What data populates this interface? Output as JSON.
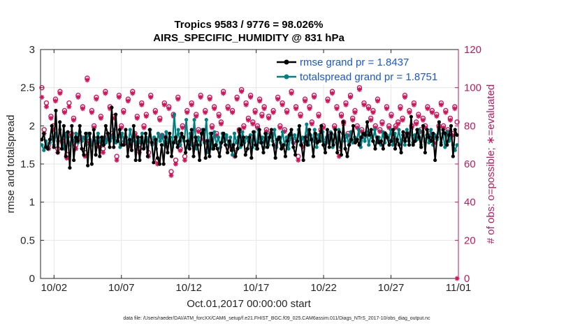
{
  "chart_data": {
    "type": "line",
    "title_line1": "Tropics 9583 / 9776 = 98.026%",
    "title_line2": "AIRS_SPECIFIC_HUMIDITY @ 831 hPa",
    "xlabel": "Oct.01,2017 00:00:00 start",
    "ylabel": "rmse and totalspread",
    "ylabel_right": "# of obs: o=possible; ∗=evaluated",
    "xlim": [
      0,
      31
    ],
    "ylim": [
      0,
      3
    ],
    "ylim_right": [
      0,
      120
    ],
    "x_ticks": [
      1,
      6,
      11,
      16,
      21,
      26,
      31
    ],
    "x_tick_labels": [
      "10/02",
      "10/07",
      "10/12",
      "10/17",
      "10/22",
      "10/27",
      "11/01"
    ],
    "y_ticks": [
      0,
      0.5,
      1,
      1.5,
      2,
      2.5,
      3
    ],
    "y_tick_labels": [
      "0",
      "0.5",
      "1",
      "1.5",
      "2",
      "2.5",
      "3"
    ],
    "y_right_ticks": [
      0,
      20,
      40,
      60,
      80,
      100,
      120
    ],
    "y_right_tick_labels": [
      "0",
      "20",
      "40",
      "60",
      "80",
      "100",
      "120"
    ],
    "legend": [
      {
        "name": "rmse grand pr = 1.8437",
        "color": "#000000"
      },
      {
        "name": "totalspread grand pr = 1.8751",
        "color": "#008080"
      }
    ],
    "series": [
      {
        "name": "rmse",
        "color": "#000000",
        "values": [
          1.82,
          1.9,
          1.72,
          1.7,
          1.82,
          2.0,
          1.72,
          2.2,
          1.65,
          2.05,
          1.7,
          2.0,
          1.6,
          1.92,
          1.45,
          2.0,
          1.55,
          1.85,
          1.8,
          2.0,
          1.7,
          1.62,
          1.9,
          1.48,
          1.9,
          1.5,
          1.95,
          1.62,
          1.85,
          1.6,
          1.85,
          1.75,
          2.0,
          1.9,
          1.72,
          2.24,
          1.72,
          2.15,
          1.8,
          1.95,
          1.75,
          1.75,
          1.95,
          1.6,
          1.82,
          1.68,
          2.0,
          1.55,
          1.85,
          1.55,
          1.85,
          1.7,
          1.9,
          1.6,
          1.95,
          1.78,
          1.52,
          1.82,
          1.58,
          1.5,
          1.75,
          1.5,
          1.85,
          1.65,
          1.9,
          1.6,
          1.78,
          1.85,
          1.72,
          1.8,
          1.9,
          1.85,
          1.65,
          1.8,
          1.7,
          1.95,
          1.6,
          1.85,
          1.75,
          1.55,
          1.9,
          1.95,
          1.58,
          1.8,
          1.6,
          1.9,
          1.7,
          1.75,
          1.7,
          1.6,
          1.78,
          1.9,
          1.75,
          1.65,
          1.8,
          1.68,
          1.75,
          1.6,
          1.7,
          1.95,
          1.75,
          1.85,
          1.62,
          1.7,
          1.85,
          1.58,
          1.92,
          1.75,
          1.7,
          1.95,
          1.78,
          1.65,
          1.9,
          1.72,
          1.85,
          1.95,
          1.75,
          1.58,
          1.82,
          1.85,
          1.7,
          1.75,
          1.6,
          1.8,
          1.88,
          1.95,
          1.72,
          1.62,
          1.8,
          2.0,
          1.75,
          1.55,
          1.85,
          1.75,
          1.95,
          1.82,
          1.6,
          1.9,
          1.78,
          1.8,
          2.0,
          1.75,
          1.65,
          1.95,
          1.72,
          1.9,
          1.75,
          1.95,
          1.65,
          1.92,
          1.62,
          2.05,
          1.7,
          1.6,
          1.75,
          1.82,
          2.0,
          1.78,
          1.82,
          1.75,
          1.85,
          1.9,
          1.88,
          2.05,
          1.88,
          1.95,
          1.8,
          1.7,
          1.85,
          1.78,
          1.8,
          1.7,
          1.9,
          1.85,
          1.75,
          1.8,
          1.95,
          1.7,
          1.82,
          1.75,
          1.65,
          1.92,
          1.8,
          1.9,
          1.75,
          2.12,
          1.75,
          1.8,
          1.95,
          1.85,
          1.72,
          2.0,
          1.65,
          1.95,
          1.85,
          1.8,
          1.9,
          1.55,
          1.85,
          2.05,
          1.75,
          1.95,
          1.9,
          1.75,
          1.88,
          2.0,
          1.6,
          1.95,
          1.88
        ]
      },
      {
        "name": "totalspread",
        "color": "#008080",
        "values": [
          1.75,
          1.68,
          1.8,
          1.72,
          1.78,
          1.85,
          1.75,
          1.9,
          1.8,
          1.95,
          1.82,
          1.7,
          1.9,
          1.85,
          1.75,
          1.85,
          1.8,
          1.9,
          1.78,
          1.92,
          1.8,
          1.85,
          1.75,
          1.9,
          1.82,
          1.75,
          1.85,
          1.78,
          1.9,
          1.8,
          1.75,
          1.85,
          1.78,
          1.9,
          1.8,
          1.85,
          1.95,
          1.78,
          1.85,
          1.72,
          1.9,
          1.8,
          1.85,
          1.75,
          1.95,
          1.8,
          1.9,
          1.75,
          1.85,
          1.78,
          1.9,
          1.72,
          1.85,
          1.8,
          1.95,
          1.75,
          1.85,
          1.7,
          1.9,
          1.8,
          1.88,
          1.75,
          1.92,
          1.78,
          1.85,
          1.72,
          2.15,
          1.78,
          1.95,
          1.75,
          1.85,
          1.8,
          2.08,
          1.72,
          1.9,
          1.75,
          2.08,
          1.7,
          1.85,
          1.75,
          1.95,
          1.78,
          2.08,
          1.65,
          1.9,
          1.7,
          1.92,
          1.75,
          1.85,
          1.72,
          1.9,
          1.8,
          1.88,
          1.75,
          1.85,
          1.62,
          1.9,
          1.78,
          1.85,
          1.72,
          1.92,
          1.78,
          1.85,
          1.8,
          1.88,
          1.72,
          1.92,
          1.7,
          1.95,
          1.78,
          1.85,
          1.72,
          1.9,
          1.75,
          1.88,
          1.8,
          1.95,
          1.72,
          1.85,
          1.78,
          1.92,
          1.75,
          1.85,
          1.7,
          1.9,
          1.78,
          1.88,
          1.8,
          1.95,
          1.75,
          1.85,
          1.78,
          2.02,
          1.75,
          1.88,
          1.8,
          1.95,
          1.72,
          1.88,
          1.8,
          1.92,
          1.75,
          1.85,
          1.78,
          1.92,
          1.72,
          1.88,
          1.78,
          1.95,
          1.72,
          1.9,
          1.8,
          1.88,
          1.75,
          1.92,
          1.78,
          1.85,
          1.8,
          1.95,
          1.72,
          1.88,
          1.8,
          1.92,
          1.75,
          1.88,
          1.8,
          1.95,
          1.78,
          1.85,
          1.75,
          1.92,
          1.78,
          1.88,
          1.82,
          1.95,
          1.75,
          1.9,
          1.8,
          1.95,
          1.78,
          1.88,
          1.75,
          1.95,
          1.8,
          1.92,
          1.78,
          1.88,
          1.82,
          1.95,
          1.75,
          1.92,
          1.8,
          1.88,
          1.78,
          1.95,
          1.75,
          1.88,
          1.82,
          1.95,
          1.78,
          1.9,
          1.72,
          1.92,
          1.8,
          1.85,
          1.75,
          1.68,
          1.75
        ]
      },
      {
        "name": "obs possible (o)",
        "color": "#d0145a",
        "marker": "circle",
        "axis": "right",
        "values": [
          100,
          78,
          92,
          70,
          85,
          80,
          94,
          68,
          98,
          72,
          88,
          65,
          92,
          76,
          84,
          70,
          96,
          74,
          90,
          66,
          105,
          72,
          88,
          80,
          95,
          70,
          85,
          68,
          98,
          74,
          90,
          76,
          85,
          64,
          96,
          80,
          88,
          72,
          94,
          70,
          98,
          76,
          85,
          68,
          92,
          80,
          86,
          66,
          96,
          72,
          88,
          62,
          84,
          75,
          92,
          70,
          90,
          56,
          86,
          62,
          95,
          68,
          80,
          64,
          88,
          72,
          92,
          70,
          86,
          78,
          96,
          74,
          88,
          72,
          95,
          80,
          90,
          76,
          86,
          82,
          98,
          74,
          90,
          70,
          88,
          66,
          95,
          78,
          99,
          80,
          92,
          84,
          96,
          82,
          88,
          80,
          94,
          86,
          90,
          78,
          85,
          76,
          88,
          70,
          95,
          80,
          92,
          78,
          88,
          74,
          98,
          72,
          90,
          64,
          86,
          70,
          94,
          76,
          90,
          82,
          96,
          74,
          86,
          78,
          80,
          72,
          94,
          76,
          98,
          80,
          90,
          66,
          86,
          82,
          92,
          76,
          96,
          84,
          88,
          80,
          100,
          78,
          92,
          76,
          90,
          84,
          88,
          80,
          94,
          78,
          82,
          76,
          90,
          80,
          86,
          74,
          80,
          82,
          90,
          84,
          96,
          76,
          88,
          80,
          92,
          82,
          86,
          78,
          84,
          80,
          90,
          76,
          88,
          72,
          86,
          80,
          92,
          80,
          88,
          78,
          84,
          76,
          90,
          82
        ]
      },
      {
        "name": "obs evaluated (*)",
        "color": "#d0145a",
        "marker": "star",
        "axis": "right",
        "values": [
          95,
          76,
          90,
          68,
          84,
          78,
          93,
          66,
          97,
          71,
          87,
          63,
          90,
          75,
          83,
          68,
          95,
          73,
          89,
          64,
          104,
          71,
          87,
          79,
          94,
          69,
          84,
          66,
          97,
          73,
          89,
          75,
          84,
          62,
          95,
          79,
          87,
          71,
          93,
          69,
          97,
          75,
          84,
          66,
          91,
          79,
          85,
          64,
          95,
          71,
          87,
          60,
          83,
          74,
          91,
          69,
          89,
          54,
          85,
          60,
          94,
          67,
          79,
          62,
          87,
          71,
          91,
          69,
          85,
          77,
          95,
          73,
          87,
          71,
          94,
          79,
          89,
          75,
          85,
          81,
          97,
          73,
          89,
          69,
          87,
          64,
          94,
          77,
          98,
          79,
          91,
          83,
          95,
          81,
          87,
          79,
          93,
          85,
          89,
          77,
          84,
          75,
          87,
          69,
          94,
          79,
          91,
          77,
          87,
          73,
          97,
          71,
          89,
          62,
          85,
          69,
          93,
          75,
          89,
          81,
          95,
          73,
          85,
          77,
          79,
          71,
          93,
          75,
          97,
          79,
          89,
          64,
          85,
          81,
          91,
          75,
          95,
          83,
          87,
          79,
          99,
          77,
          91,
          75,
          89,
          83,
          87,
          79,
          93,
          77,
          81,
          75,
          89,
          79,
          85,
          73,
          79,
          81,
          89,
          83,
          95,
          75,
          87,
          79,
          91,
          81,
          85,
          77,
          83,
          79,
          89,
          75,
          87,
          71,
          85,
          79,
          91,
          79,
          87,
          77,
          83,
          75,
          89,
          0
        ]
      }
    ],
    "footer_text": "data file: /Users/raeder/DAI/ATM_forcXX/CAM6_setup/f.e21.FHIST_BGC.f09_025.CAM6assim.011/Diags_NTrS_2017-10/obs_diag_output.nc"
  },
  "colors": {
    "rmse": "#000000",
    "spread": "#008080",
    "obs": "#d0145a",
    "legend_text": "#1a56db",
    "right_axis": "#c2185b"
  }
}
